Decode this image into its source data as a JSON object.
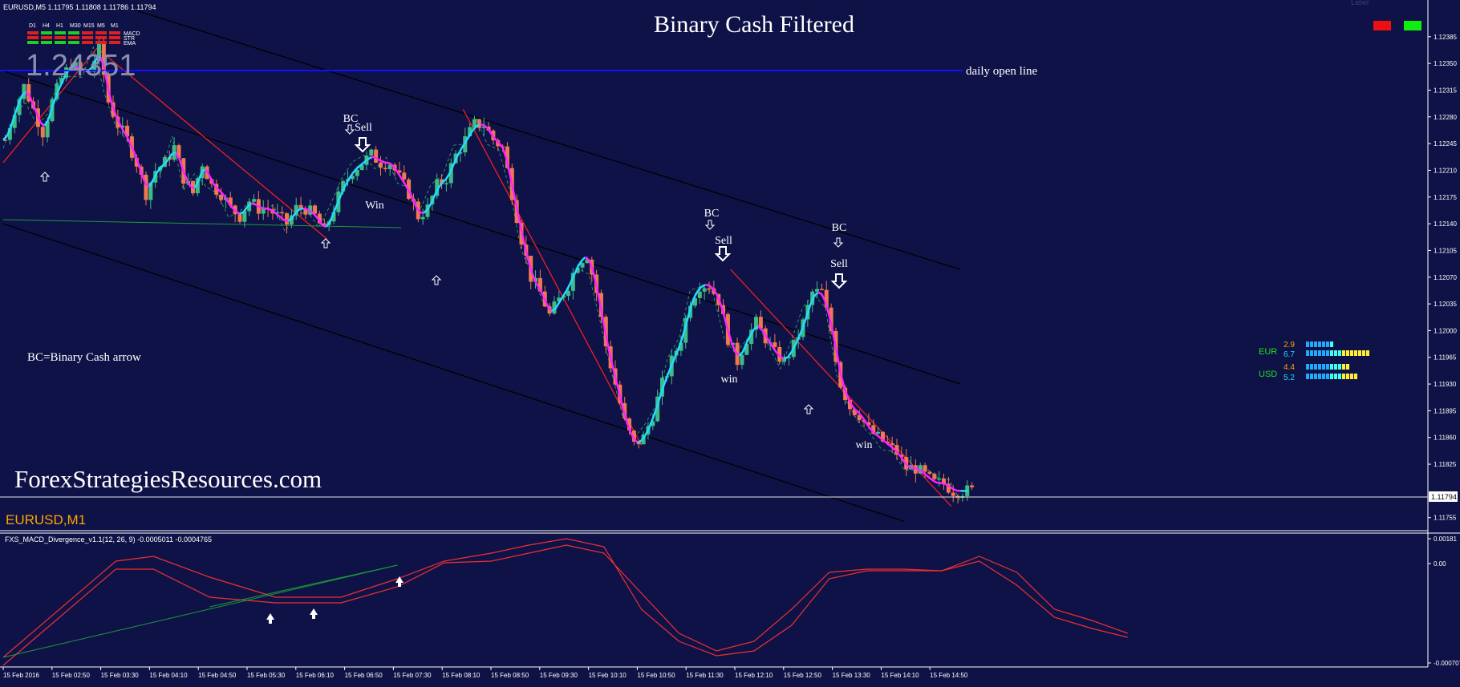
{
  "header": {
    "symbol_line": "EURUSD,M5  1.11795 1.11808 1.11786 1.11794",
    "title": "Binary Cash Filtered",
    "watermark_price": "1.24351",
    "symbol_tag": "EURUSD,M1",
    "site": "ForexStrategiesResources.com",
    "legend_note": "BC=Binary Cash arrow",
    "daily_open_label": "daily open line",
    "top_right_faint": "Label"
  },
  "colors": {
    "background": "#0f1247",
    "bull": "#3dbd86",
    "bear": "#f07850",
    "magenta": "#ff22ff",
    "cyan": "#22ddff",
    "daily_open": "#1010ff",
    "red_line": "#ee2020",
    "orange_tag": "#ffa500"
  },
  "timeframe_panel": {
    "timeframes": [
      "D1",
      "H4",
      "H1",
      "M30",
      "M15",
      "M5",
      "M1"
    ],
    "rows": [
      {
        "label": "MACD",
        "states": [
          "red",
          "green",
          "green",
          "green",
          "red",
          "red",
          "red"
        ]
      },
      {
        "label": "STR",
        "states": [
          "red",
          "red",
          "red",
          "red",
          "red",
          "red",
          "red"
        ]
      },
      {
        "label": "EMA",
        "states": [
          "green",
          "green",
          "green",
          "green",
          "red",
          "red",
          "red"
        ]
      }
    ]
  },
  "corner_boxes": [
    {
      "color": "#ee1010"
    },
    {
      "color": "#10ee10"
    }
  ],
  "strength_meter": [
    {
      "currency": "EUR",
      "values": [
        "2.9",
        "6.7"
      ]
    },
    {
      "currency": "USD",
      "values": [
        "4.4",
        "5.2"
      ]
    }
  ],
  "annotations": [
    {
      "type": "bc",
      "text": "BC"
    },
    {
      "type": "sell",
      "text": "Sell"
    },
    {
      "type": "win",
      "text": "Win"
    },
    {
      "type": "bc",
      "text": "BC"
    },
    {
      "type": "sell",
      "text": "Sell"
    },
    {
      "type": "win",
      "text": "win"
    },
    {
      "type": "bc",
      "text": "BC"
    },
    {
      "type": "sell",
      "text": "Sell"
    },
    {
      "type": "win",
      "text": "win"
    }
  ],
  "chart_data": [
    {
      "type": "candlestick",
      "title": "EURUSD,M5",
      "symbol": "EURUSD",
      "timeframe": "M5",
      "last_ohlc": {
        "open": 1.11795,
        "high": 1.11808,
        "low": 1.11786,
        "close": 1.11794
      },
      "current_price_label": "1.11794",
      "daily_open_price": 1.12335,
      "y_ticks": [
        "1.12385",
        "1.12350",
        "1.12315",
        "1.12280",
        "1.12245",
        "1.12210",
        "1.12175",
        "1.12140",
        "1.12105",
        "1.12070",
        "1.12035",
        "1.12000",
        "1.11965",
        "1.11930",
        "1.11895",
        "1.11860",
        "1.11825",
        "1.11755"
      ],
      "ylim": [
        1.1174,
        1.1241
      ],
      "close_path": [
        [
          0,
          1.1225
        ],
        [
          10,
          1.1229
        ],
        [
          20,
          1.1232
        ],
        [
          30,
          1.1229
        ],
        [
          40,
          1.1226
        ],
        [
          50,
          1.123
        ],
        [
          60,
          1.1233
        ],
        [
          70,
          1.1235
        ],
        [
          80,
          1.1234
        ],
        [
          90,
          1.1234
        ],
        [
          100,
          1.1237
        ],
        [
          110,
          1.123
        ],
        [
          120,
          1.1227
        ],
        [
          130,
          1.1225
        ],
        [
          140,
          1.1222
        ],
        [
          150,
          1.1218
        ],
        [
          160,
          1.1221
        ],
        [
          170,
          1.1222
        ],
        [
          180,
          1.1224
        ],
        [
          190,
          1.122
        ],
        [
          200,
          1.1218
        ],
        [
          210,
          1.1222
        ],
        [
          220,
          1.1219
        ],
        [
          230,
          1.1218
        ],
        [
          240,
          1.1216
        ],
        [
          250,
          1.1215
        ],
        [
          260,
          1.1217
        ],
        [
          270,
          1.1216
        ],
        [
          280,
          1.1216
        ],
        [
          290,
          1.1215
        ],
        [
          300,
          1.1214
        ],
        [
          310,
          1.1216
        ],
        [
          320,
          1.1216
        ],
        [
          330,
          1.1215
        ],
        [
          340,
          1.1213
        ],
        [
          350,
          1.1216
        ],
        [
          360,
          1.1219
        ],
        [
          370,
          1.1221
        ],
        [
          380,
          1.1222
        ],
        [
          390,
          1.1223
        ],
        [
          400,
          1.1222
        ],
        [
          410,
          1.1222
        ],
        [
          420,
          1.122
        ],
        [
          430,
          1.1218
        ],
        [
          440,
          1.1215
        ],
        [
          450,
          1.1216
        ],
        [
          460,
          1.1219
        ],
        [
          470,
          1.122
        ],
        [
          480,
          1.1223
        ],
        [
          490,
          1.1225
        ],
        [
          500,
          1.1227
        ],
        [
          510,
          1.1227
        ],
        [
          520,
          1.1225
        ],
        [
          530,
          1.1224
        ],
        [
          540,
          1.1218
        ],
        [
          550,
          1.1212
        ],
        [
          560,
          1.1207
        ],
        [
          570,
          1.1205
        ],
        [
          580,
          1.1202
        ],
        [
          590,
          1.1204
        ],
        [
          600,
          1.1206
        ],
        [
          610,
          1.1209
        ],
        [
          620,
          1.121
        ],
        [
          630,
          1.1205
        ],
        [
          640,
          1.1198
        ],
        [
          650,
          1.1193
        ],
        [
          660,
          1.1188
        ],
        [
          670,
          1.1185
        ],
        [
          680,
          1.1186
        ],
        [
          690,
          1.1189
        ],
        [
          700,
          1.1193
        ],
        [
          710,
          1.1196
        ],
        [
          720,
          1.1199
        ],
        [
          730,
          1.1204
        ],
        [
          740,
          1.1206
        ],
        [
          750,
          1.1206
        ],
        [
          760,
          1.1204
        ],
        [
          770,
          1.1199
        ],
        [
          780,
          1.1196
        ],
        [
          790,
          1.1199
        ],
        [
          800,
          1.1201
        ],
        [
          810,
          1.1199
        ],
        [
          820,
          1.1197
        ],
        [
          830,
          1.1196
        ],
        [
          840,
          1.1198
        ],
        [
          850,
          1.1201
        ],
        [
          860,
          1.1205
        ],
        [
          870,
          1.1205
        ],
        [
          880,
          1.12
        ],
        [
          890,
          1.1193
        ],
        [
          900,
          1.119
        ],
        [
          910,
          1.1189
        ],
        [
          920,
          1.1187
        ],
        [
          930,
          1.1186
        ],
        [
          940,
          1.1185
        ],
        [
          950,
          1.1184
        ],
        [
          960,
          1.1182
        ],
        [
          970,
          1.1182
        ],
        [
          980,
          1.1181
        ],
        [
          990,
          1.118
        ],
        [
          1000,
          1.118
        ],
        [
          1010,
          1.1179
        ],
        [
          1020,
          1.1179
        ],
        [
          1030,
          1.1179
        ]
      ],
      "trend_lines": [
        {
          "color": "black",
          "from": [
            140,
            1.1242
          ],
          "to": [
            1020,
            1.1208
          ]
        },
        {
          "color": "black",
          "from": [
            0,
            1.1234
          ],
          "to": [
            1020,
            1.1193
          ]
        },
        {
          "color": "black",
          "from": [
            0,
            1.1214
          ],
          "to": [
            960,
            1.1175
          ]
        },
        {
          "color": "red",
          "from": [
            0,
            1.1222
          ],
          "to": [
            100,
            1.1237
          ]
        },
        {
          "color": "red",
          "from": [
            100,
            1.1237
          ],
          "to": [
            345,
            1.1212
          ]
        },
        {
          "color": "red",
          "from": [
            490,
            1.1229
          ],
          "to": [
            680,
            1.1185
          ]
        },
        {
          "color": "red",
          "from": [
            775,
            1.1208
          ],
          "to": [
            1010,
            1.1177
          ]
        }
      ]
    },
    {
      "type": "line",
      "title": "FXS_MACD_Divergence_v1.1(12, 26, 9) -0.0005011 -0.0004765",
      "y_ticks": [
        "0.00181",
        "0.00",
        "-0.000707"
      ],
      "series": [
        {
          "name": "-0.0005011",
          "values": []
        },
        {
          "name": "-0.0004765",
          "values": []
        }
      ]
    }
  ],
  "x_axis": {
    "ticks": [
      "15 Feb 2016",
      "15 Feb 02:50",
      "15 Feb 03:30",
      "15 Feb 04:10",
      "15 Feb 04:50",
      "15 Feb 05:30",
      "15 Feb 06:10",
      "15 Feb 06:50",
      "15 Feb 07:30",
      "15 Feb 08:10",
      "15 Feb 08:50",
      "15 Feb 09:30",
      "15 Feb 10:10",
      "15 Feb 10:50",
      "15 Feb 11:30",
      "15 Feb 12:10",
      "15 Feb 12:50",
      "15 Feb 13:30",
      "15 Feb 14:10",
      "15 Feb 14:50"
    ]
  }
}
